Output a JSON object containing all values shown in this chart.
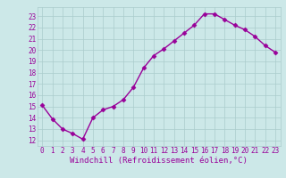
{
  "x": [
    0,
    1,
    2,
    3,
    4,
    5,
    6,
    7,
    8,
    9,
    10,
    11,
    12,
    13,
    14,
    15,
    16,
    17,
    18,
    19,
    20,
    21,
    22,
    23
  ],
  "y": [
    15.1,
    13.9,
    13.0,
    12.6,
    12.1,
    14.0,
    14.7,
    15.0,
    15.6,
    16.7,
    18.4,
    19.5,
    20.1,
    20.8,
    21.5,
    22.2,
    23.2,
    23.2,
    22.7,
    22.2,
    21.8,
    21.2,
    20.4,
    19.8
  ],
  "line_color": "#990099",
  "marker": "D",
  "markersize": 2.5,
  "linewidth": 1.0,
  "bg_color": "#cce8e8",
  "grid_color": "#aacccc",
  "xlabel": "Windchill (Refroidissement éolien,°C)",
  "xlabel_color": "#990099",
  "xlabel_fontsize": 6.5,
  "tick_color": "#990099",
  "tick_fontsize": 5.5,
  "ylim": [
    11.5,
    23.8
  ],
  "xlim": [
    -0.5,
    23.5
  ]
}
